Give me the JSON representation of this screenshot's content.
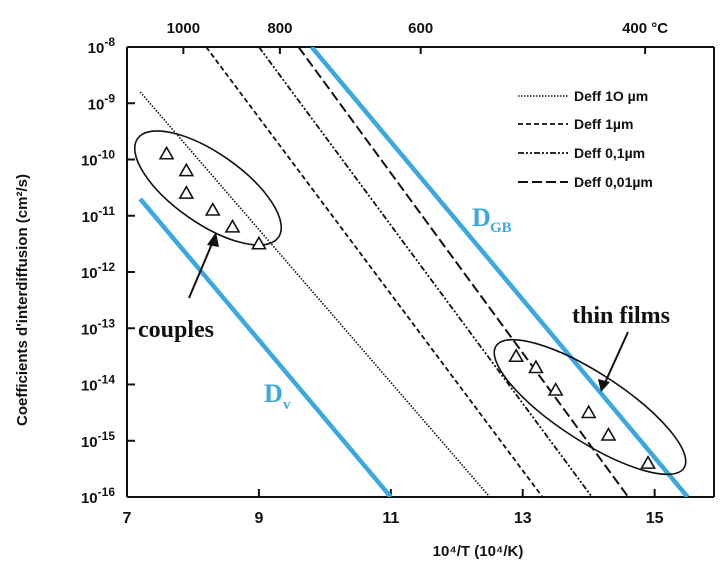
{
  "chart_data": {
    "type": "line",
    "xlabel": "10⁴/T   (10⁴/K)",
    "ylabel": "Coefficients d'interdiffusion   (cm²/s)",
    "x_ticks": [
      "7",
      "9",
      "11",
      "13",
      "15"
    ],
    "x_tick_values": [
      7,
      9,
      11,
      13,
      15
    ],
    "top_ticks": [
      "1000",
      "800",
      "600",
      "400 °C"
    ],
    "top_tick_celsius": [
      1000,
      800,
      600,
      400
    ],
    "y_ticks_exp": [
      "-8",
      "-9",
      "-10",
      "-11",
      "-12",
      "-13",
      "-14",
      "-15",
      "-16"
    ],
    "xlim": [
      7,
      15.9
    ],
    "ylim_log10": [
      -16,
      -8
    ],
    "legend_position": "top-right",
    "colors": {
      "blue": "#3aa9df",
      "black": "#111111"
    },
    "series": [
      {
        "name": "Deff 10 µm",
        "style": "dotted",
        "x": [
          7.2,
          12.5
        ],
        "log10_y": [
          -8.8,
          -16.0
        ]
      },
      {
        "name": "Deff 1µm",
        "style": "dashed",
        "x": [
          8.2,
          13.3
        ],
        "log10_y": [
          -8.0,
          -16.0
        ]
      },
      {
        "name": "Deff 0,1µm",
        "style": "dashdot",
        "x": [
          9.0,
          14.05
        ],
        "log10_y": [
          -8.0,
          -16.0
        ]
      },
      {
        "name": "Deff 0,01µm",
        "style": "longdash",
        "x": [
          9.35,
          14.6
        ],
        "log10_y": [
          -7.6,
          -16.0
        ]
      },
      {
        "name": "D",
        "sub": "GB",
        "style": "blue",
        "x": [
          9.8,
          15.5
        ],
        "log10_y": [
          -8.0,
          -16.0
        ]
      },
      {
        "name": "D",
        "sub": "v",
        "style": "blue",
        "x": [
          7.2,
          11.0
        ],
        "log10_y": [
          -10.7,
          -16.0
        ]
      }
    ],
    "points": [
      {
        "group": "couples",
        "x": [
          7.6,
          7.9,
          7.9,
          8.3,
          8.6,
          9.0
        ],
        "log10_y": [
          -9.9,
          -10.2,
          -10.6,
          -10.9,
          -11.2,
          -11.5
        ]
      },
      {
        "group": "thin films",
        "x": [
          12.9,
          13.2,
          13.5,
          14.0,
          14.3,
          14.9
        ],
        "log10_y": [
          -13.5,
          -13.7,
          -14.1,
          -14.5,
          -14.9,
          -15.4
        ]
      }
    ],
    "annotations": [
      "couples",
      "thin films"
    ],
    "legend": [
      "Deff 1O µm",
      "Deff 1µm",
      "Deff 0,1µm",
      "Deff 0,01µm"
    ]
  }
}
